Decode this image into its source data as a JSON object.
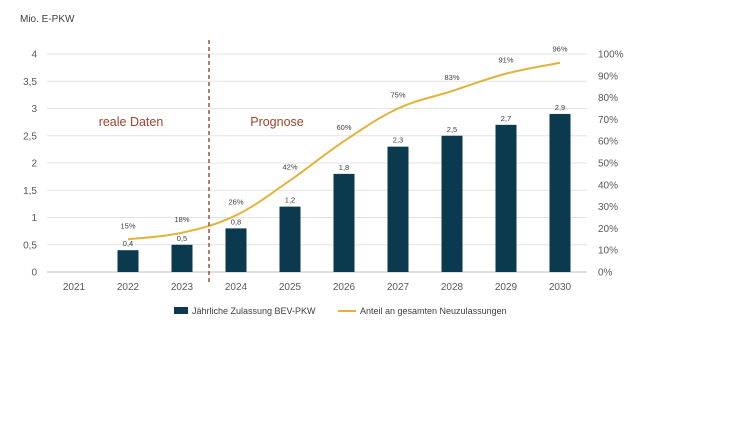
{
  "chart_data": {
    "type": "bar+line",
    "ylabel_left": "Mio. E-PKW",
    "categories": [
      "2021",
      "2022",
      "2023",
      "2024",
      "2025",
      "2026",
      "2027",
      "2028",
      "2029",
      "2030"
    ],
    "left_ylim": [
      0,
      4
    ],
    "left_ticks": [
      "0",
      "0,5",
      "1",
      "1,5",
      "2",
      "2,5",
      "3",
      "3,5",
      "4"
    ],
    "right_ylim": [
      0,
      100
    ],
    "right_ticks": [
      "0%",
      "10%",
      "20%",
      "30%",
      "40%",
      "50%",
      "60%",
      "70%",
      "80%",
      "90%",
      "100%"
    ],
    "grid": true,
    "series": [
      {
        "name": "Jährliche Zulassung BEV-PKW",
        "kind": "bar",
        "axis": "left",
        "color": "#0b3a4f",
        "values": [
          null,
          0.4,
          0.5,
          0.8,
          1.2,
          1.8,
          2.3,
          2.5,
          2.7,
          2.9
        ],
        "labels": [
          "",
          "0,4",
          "0,5",
          "0,8",
          "1,2",
          "1,8",
          "2,3",
          "2,5",
          "2,7",
          "2,9"
        ]
      },
      {
        "name": "Anteil an gesamten Neuzulassungen",
        "kind": "line",
        "axis": "right",
        "color": "#e3b23c",
        "values": [
          null,
          15,
          18,
          26,
          42,
          60,
          75,
          83,
          91,
          96
        ],
        "labels": [
          "",
          "15%",
          "18%",
          "26%",
          "42%",
          "60%",
          "75%",
          "83%",
          "91%",
          "96%"
        ]
      }
    ],
    "annotations": {
      "left_section": "reale Daten",
      "right_section": "Prognose",
      "divider_after_category": "2023",
      "divider_color": "#a0442c",
      "section_color": "#a0442c"
    },
    "legend_position": "bottom"
  }
}
